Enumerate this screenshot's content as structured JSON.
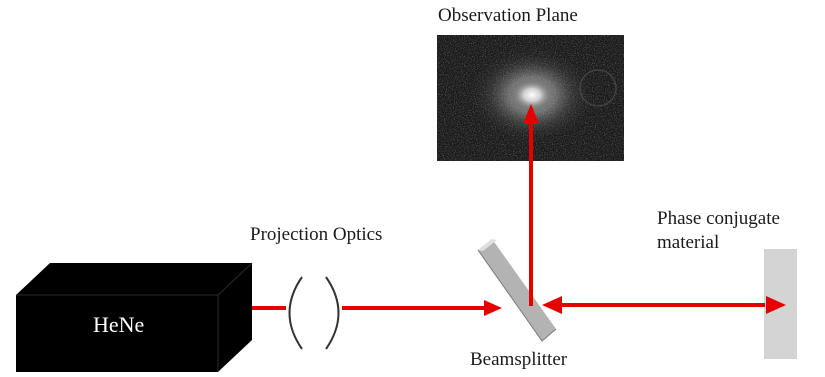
{
  "labels": {
    "observation_plane": "Observation Plane",
    "projection_optics": "Projection Optics",
    "phase_conjugate_line1": "Phase conjugate",
    "phase_conjugate_line2": "material",
    "laser": "HeNe",
    "beamsplitter": "Beamsplitter"
  },
  "colors": {
    "beam": "#e60000",
    "laser_box": "#000000",
    "screen_bg": "#1a1a1a",
    "mirror": "#bdbdbd",
    "material": "#d4d4d4"
  }
}
